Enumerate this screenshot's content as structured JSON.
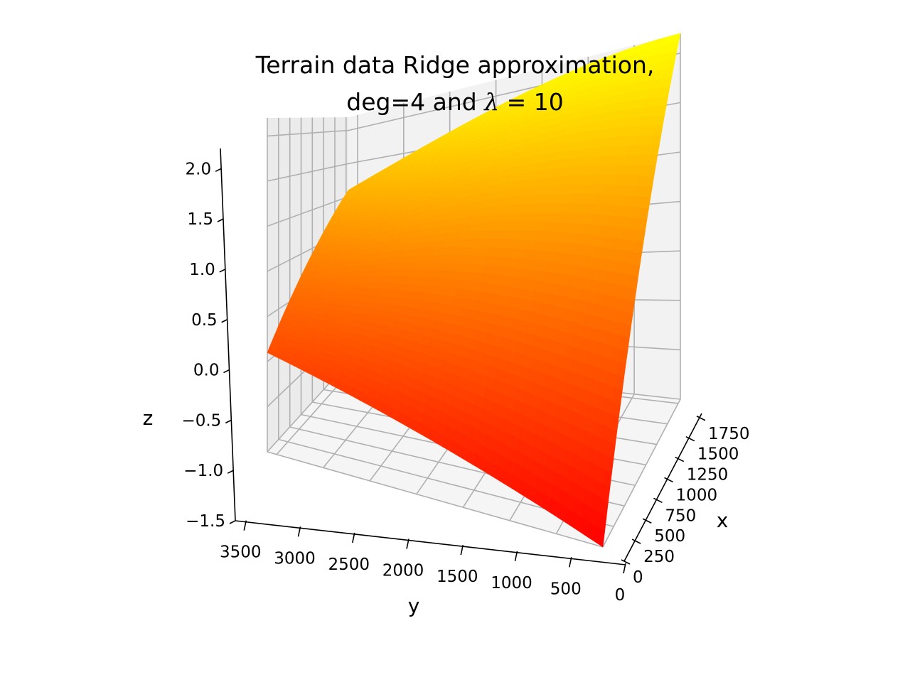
{
  "chart_data": {
    "type": "surface3d",
    "title_line1": "Terrain data Ridge approximation,",
    "title_line2_prefix": "deg=4 and ",
    "title_line2_symbol": "λ",
    "title_line2_suffix": " = 10",
    "xlabel": "x",
    "ylabel": "y",
    "zlabel": "z",
    "x_ticks": [
      "0",
      "250",
      "500",
      "750",
      "1000",
      "1250",
      "1500",
      "1750"
    ],
    "y_ticks": [
      "0",
      "500",
      "1000",
      "1500",
      "2000",
      "2500",
      "3000",
      "3500"
    ],
    "z_ticks": [
      "−1.5",
      "−1.0",
      "−0.5",
      "0.0",
      "0.5",
      "1.0",
      "1.5",
      "2.0"
    ],
    "x_range": [
      0,
      1800
    ],
    "y_range": [
      0,
      3600
    ],
    "z_range": [
      -1.5,
      2.2
    ],
    "colormap": "autumn",
    "colormap_colors": [
      "#ff0000",
      "#ffff00"
    ],
    "grid": true,
    "corner_values": {
      "x0_y0": -1.5,
      "x1800_y0": 2.2,
      "x0_y3600": -0.4,
      "x1800_y3600": 1.1
    }
  }
}
